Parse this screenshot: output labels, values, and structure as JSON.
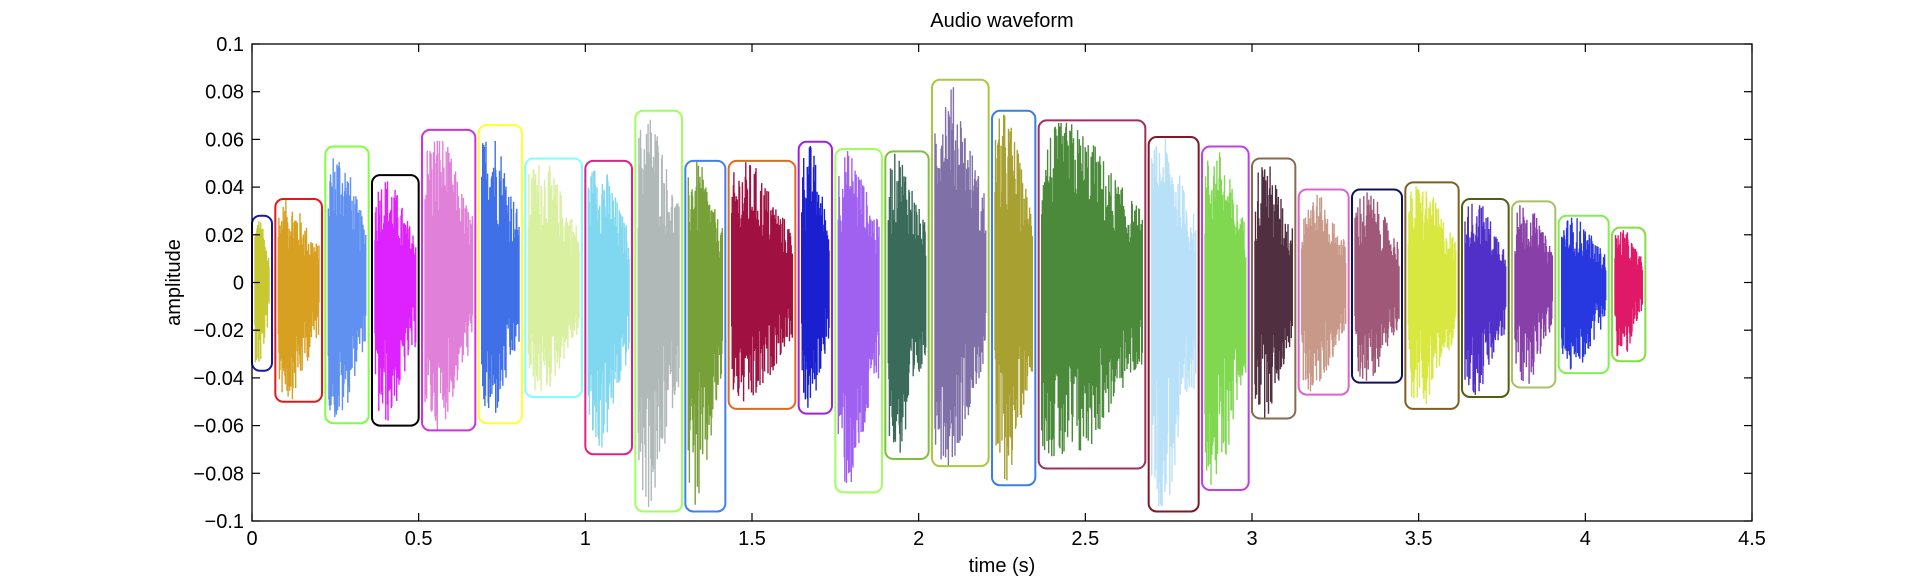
{
  "chart_data": {
    "type": "line",
    "title": "Audio waveform",
    "xlabel": "time (s)",
    "ylabel": "amplitude",
    "xlim": [
      0,
      4.5
    ],
    "ylim": [
      -0.1,
      0.1
    ],
    "xticks": [
      0,
      0.5,
      1,
      1.5,
      2,
      2.5,
      3,
      3.5,
      4,
      4.5
    ],
    "xtick_labels": [
      "0",
      "0.5",
      "1",
      "1.5",
      "2",
      "2.5",
      "3",
      "3.5",
      "4",
      "4.5"
    ],
    "yticks": [
      -0.1,
      -0.08,
      -0.06,
      -0.04,
      -0.02,
      0,
      0.02,
      0.04,
      0.06,
      0.08,
      0.1
    ],
    "ytick_labels": [
      "−0.1",
      "−0.08",
      "−0.06",
      "−0.04",
      "−0.02",
      "0",
      "0.02",
      "0.04",
      "0.06",
      "0.08",
      "0.1"
    ],
    "grid": false,
    "segments": [
      {
        "t0": 0.0,
        "t1": 0.06,
        "ymin": -0.037,
        "ymax": 0.028,
        "wave_color": "#c8c832",
        "box_color": "#1a1aa0"
      },
      {
        "t0": 0.07,
        "t1": 0.21,
        "ymin": -0.05,
        "ymax": 0.035,
        "wave_color": "#d8a020",
        "box_color": "#e01a1a"
      },
      {
        "t0": 0.22,
        "t1": 0.35,
        "ymin": -0.059,
        "ymax": 0.057,
        "wave_color": "#6090f0",
        "box_color": "#80ff40"
      },
      {
        "t0": 0.36,
        "t1": 0.5,
        "ymin": -0.06,
        "ymax": 0.045,
        "wave_color": "#dd22ff",
        "box_color": "#000000"
      },
      {
        "t0": 0.51,
        "t1": 0.67,
        "ymin": -0.062,
        "ymax": 0.064,
        "wave_color": "#e080d8",
        "box_color": "#d030e0"
      },
      {
        "t0": 0.68,
        "t1": 0.81,
        "ymin": -0.059,
        "ymax": 0.066,
        "wave_color": "#4070e8",
        "box_color": "#ffff30"
      },
      {
        "t0": 0.82,
        "t1": 0.99,
        "ymin": -0.048,
        "ymax": 0.052,
        "wave_color": "#d8f0a0",
        "box_color": "#80ffff"
      },
      {
        "t0": 1.0,
        "t1": 1.14,
        "ymin": -0.072,
        "ymax": 0.051,
        "wave_color": "#80d8f0",
        "box_color": "#e0208a"
      },
      {
        "t0": 1.15,
        "t1": 1.29,
        "ymin": -0.096,
        "ymax": 0.072,
        "wave_color": "#b0b8b8",
        "box_color": "#a0ff60"
      },
      {
        "t0": 1.3,
        "t1": 1.42,
        "ymin": -0.096,
        "ymax": 0.051,
        "wave_color": "#78a038",
        "box_color": "#4080f0"
      },
      {
        "t0": 1.43,
        "t1": 1.63,
        "ymin": -0.053,
        "ymax": 0.051,
        "wave_color": "#a01040",
        "box_color": "#e06a20"
      },
      {
        "t0": 1.64,
        "t1": 1.74,
        "ymin": -0.055,
        "ymax": 0.059,
        "wave_color": "#1a20d0",
        "box_color": "#a020e0"
      },
      {
        "t0": 1.75,
        "t1": 1.89,
        "ymin": -0.088,
        "ymax": 0.056,
        "wave_color": "#a060f0",
        "box_color": "#a0ff60"
      },
      {
        "t0": 1.9,
        "t1": 2.03,
        "ymin": -0.074,
        "ymax": 0.055,
        "wave_color": "#3a6a5a",
        "box_color": "#80c040"
      },
      {
        "t0": 2.04,
        "t1": 2.21,
        "ymin": -0.077,
        "ymax": 0.085,
        "wave_color": "#8070a8",
        "box_color": "#a8c840"
      },
      {
        "t0": 2.22,
        "t1": 2.35,
        "ymin": -0.085,
        "ymax": 0.072,
        "wave_color": "#a8a030",
        "box_color": "#3a80e0"
      },
      {
        "t0": 2.36,
        "t1": 2.68,
        "ymin": -0.078,
        "ymax": 0.068,
        "wave_color": "#4a8a3a",
        "box_color": "#a03060"
      },
      {
        "t0": 2.69,
        "t1": 2.84,
        "ymin": -0.096,
        "ymax": 0.061,
        "wave_color": "#b8e0f8",
        "box_color": "#801828"
      },
      {
        "t0": 2.85,
        "t1": 2.99,
        "ymin": -0.087,
        "ymax": 0.057,
        "wave_color": "#80d850",
        "box_color": "#c040e0"
      },
      {
        "t0": 3.0,
        "t1": 3.13,
        "ymin": -0.057,
        "ymax": 0.052,
        "wave_color": "#503040",
        "box_color": "#8a6a50"
      },
      {
        "t0": 3.14,
        "t1": 3.29,
        "ymin": -0.047,
        "ymax": 0.039,
        "wave_color": "#c89888",
        "box_color": "#e060d0"
      },
      {
        "t0": 3.3,
        "t1": 3.45,
        "ymin": -0.042,
        "ymax": 0.039,
        "wave_color": "#a05878",
        "box_color": "#101060"
      },
      {
        "t0": 3.46,
        "t1": 3.62,
        "ymin": -0.053,
        "ymax": 0.042,
        "wave_color": "#d8e840",
        "box_color": "#806020"
      },
      {
        "t0": 3.63,
        "t1": 3.77,
        "ymin": -0.048,
        "ymax": 0.035,
        "wave_color": "#5030c8",
        "box_color": "#506010"
      },
      {
        "t0": 3.78,
        "t1": 3.91,
        "ymin": -0.044,
        "ymax": 0.034,
        "wave_color": "#8840a8",
        "box_color": "#a8c068"
      },
      {
        "t0": 3.92,
        "t1": 4.07,
        "ymin": -0.038,
        "ymax": 0.028,
        "wave_color": "#2838e0",
        "box_color": "#80f050"
      },
      {
        "t0": 4.08,
        "t1": 4.18,
        "ymin": -0.033,
        "ymax": 0.023,
        "wave_color": "#e01868",
        "box_color": "#80e040"
      }
    ]
  }
}
